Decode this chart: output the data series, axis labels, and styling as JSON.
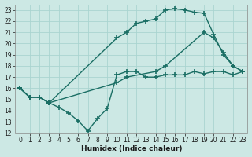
{
  "xlabel": "Humidex (Indice chaleur)",
  "bg_color": "#cce8e4",
  "grid_color": "#aad4d0",
  "line_color": "#1a6e64",
  "xlim": [
    -0.5,
    23.5
  ],
  "ylim": [
    12,
    23.5
  ],
  "xticks": [
    0,
    1,
    2,
    3,
    4,
    5,
    6,
    7,
    8,
    9,
    10,
    11,
    12,
    13,
    14,
    15,
    16,
    17,
    18,
    19,
    20,
    21,
    22,
    23
  ],
  "yticks": [
    12,
    13,
    14,
    15,
    16,
    17,
    18,
    19,
    20,
    21,
    22,
    23
  ],
  "line1_x": [
    0,
    1,
    2,
    3,
    4,
    5,
    6,
    7,
    8,
    9,
    10,
    11,
    12,
    13,
    14,
    15,
    16,
    17,
    18,
    19,
    20,
    21,
    22,
    23
  ],
  "line1_y": [
    16,
    15.2,
    15.2,
    14.7,
    14.3,
    13.8,
    13.1,
    12.2,
    13.3,
    14.2,
    17.2,
    17.5,
    17.5,
    17.0,
    17.0,
    17.2,
    17.2,
    17.2,
    17.5,
    17.3,
    17.5,
    17.5,
    17.2,
    17.5
  ],
  "line2_x": [
    0,
    1,
    2,
    3,
    10,
    11,
    12,
    13,
    14,
    15,
    16,
    17,
    18,
    19,
    20,
    21,
    22,
    23
  ],
  "line2_y": [
    16,
    15.2,
    15.2,
    14.7,
    20.5,
    21.0,
    21.8,
    22.0,
    22.2,
    23.0,
    23.1,
    23.0,
    22.8,
    22.7,
    20.8,
    19.0,
    18.0,
    17.5
  ],
  "line3_x": [
    0,
    1,
    2,
    3,
    10,
    11,
    14,
    15,
    19,
    20,
    21,
    22,
    23
  ],
  "line3_y": [
    16,
    15.2,
    15.2,
    14.7,
    16.5,
    17.0,
    17.5,
    18.0,
    21.0,
    20.5,
    19.2,
    18.0,
    17.5
  ],
  "marker": "+",
  "markersize": 4,
  "markeredgewidth": 1.2,
  "linewidth": 1.0
}
